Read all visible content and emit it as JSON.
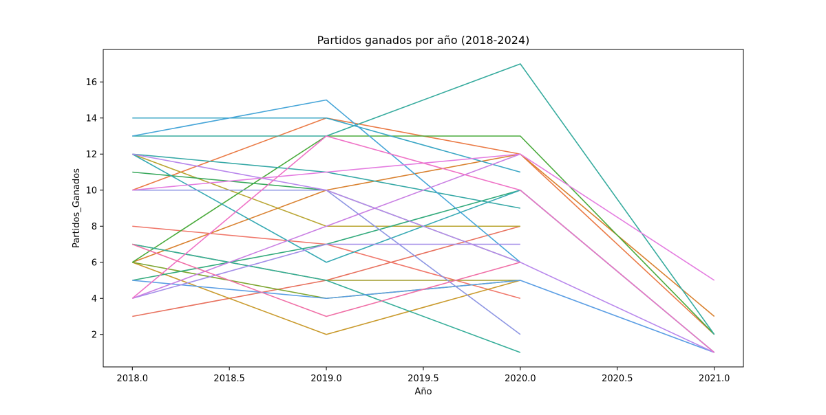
{
  "chart_data": {
    "type": "line",
    "title": "Partidos ganados por año (2018-2024)",
    "xlabel": "Año",
    "ylabel": "Partidos_Ganados",
    "xlim": [
      2017.85,
      2021.15
    ],
    "ylim": [
      0.2,
      17.8
    ],
    "xticks": [
      2018.0,
      2018.5,
      2019.0,
      2019.5,
      2020.0,
      2020.5,
      2021.0
    ],
    "xtick_labels": [
      "2018.0",
      "2018.5",
      "2019.0",
      "2019.5",
      "2020.0",
      "2020.5",
      "2021.0"
    ],
    "yticks": [
      2,
      4,
      6,
      8,
      10,
      12,
      14,
      16
    ],
    "ytick_labels": [
      "2",
      "4",
      "6",
      "8",
      "10",
      "12",
      "14",
      "16"
    ],
    "grid": false,
    "legend": "none",
    "x": [
      2018,
      2019,
      2020,
      2021
    ],
    "series": [
      {
        "color": "#f0776a",
        "values": [
          8,
          7,
          4,
          null
        ]
      },
      {
        "color": "#e8715e",
        "values": [
          3,
          5,
          8,
          null
        ]
      },
      {
        "color": "#ea7a45",
        "values": [
          10,
          14,
          12,
          2
        ]
      },
      {
        "color": "#d9812f",
        "values": [
          6,
          10,
          12,
          3
        ]
      },
      {
        "color": "#c99a2c",
        "values": [
          6,
          2,
          5,
          null
        ]
      },
      {
        "color": "#b9a532",
        "values": [
          12,
          8,
          8,
          null
        ]
      },
      {
        "color": "#a09b2a",
        "values": [
          7,
          5,
          5,
          null
        ]
      },
      {
        "color": "#7ea631",
        "values": [
          6,
          4,
          5,
          null
        ]
      },
      {
        "color": "#4aaa3b",
        "values": [
          6,
          13,
          13,
          2
        ]
      },
      {
        "color": "#38a85b",
        "values": [
          11,
          10,
          6,
          null
        ]
      },
      {
        "color": "#32aa7c",
        "values": [
          5,
          7,
          10,
          1
        ]
      },
      {
        "color": "#35ad99",
        "values": [
          7,
          5,
          1,
          null
        ]
      },
      {
        "color": "#36ab9e",
        "values": [
          13,
          13,
          17,
          2
        ]
      },
      {
        "color": "#35a8a6",
        "values": [
          12,
          11,
          9,
          null
        ]
      },
      {
        "color": "#36a9b3",
        "values": [
          12,
          6,
          10,
          1
        ]
      },
      {
        "color": "#3aa6c5",
        "values": [
          14,
          14,
          11,
          null
        ]
      },
      {
        "color": "#46a5d8",
        "values": [
          13,
          15,
          6,
          null
        ]
      },
      {
        "color": "#5b9ee4",
        "values": [
          5,
          4,
          5,
          1
        ]
      },
      {
        "color": "#8d95e3",
        "values": [
          10,
          10,
          2,
          null
        ]
      },
      {
        "color": "#a38de8",
        "values": [
          4,
          7,
          7,
          null
        ]
      },
      {
        "color": "#b887ec",
        "values": [
          12,
          10,
          6,
          1
        ]
      },
      {
        "color": "#c97fe3",
        "values": [
          4,
          8,
          12,
          null
        ]
      },
      {
        "color": "#e47ce0",
        "values": [
          10,
          11,
          12,
          5
        ]
      },
      {
        "color": "#ef72c6",
        "values": [
          4,
          13,
          10,
          1
        ]
      },
      {
        "color": "#f06fa6",
        "values": [
          7,
          3,
          6,
          null
        ]
      }
    ]
  }
}
